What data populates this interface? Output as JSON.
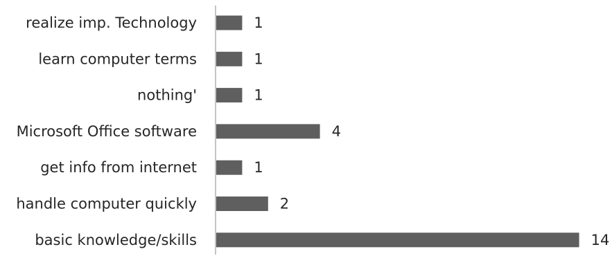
{
  "chart_data": {
    "type": "bar",
    "orientation": "horizontal",
    "categories": [
      "realize imp. Technology",
      "learn computer terms",
      "nothing'",
      "Microsoft Office software",
      "get info from internet",
      "handle computer quickly",
      "basic knowledge/skills"
    ],
    "values": [
      1,
      1,
      1,
      4,
      1,
      2,
      14
    ],
    "value_labels": [
      "1",
      "1",
      "1",
      "4",
      "1",
      "2",
      "14"
    ],
    "title": "",
    "xlabel": "",
    "ylabel": "",
    "xlim": [
      0,
      14
    ],
    "grid": false,
    "legend": "none",
    "bar_color": "#5f5f5f"
  }
}
